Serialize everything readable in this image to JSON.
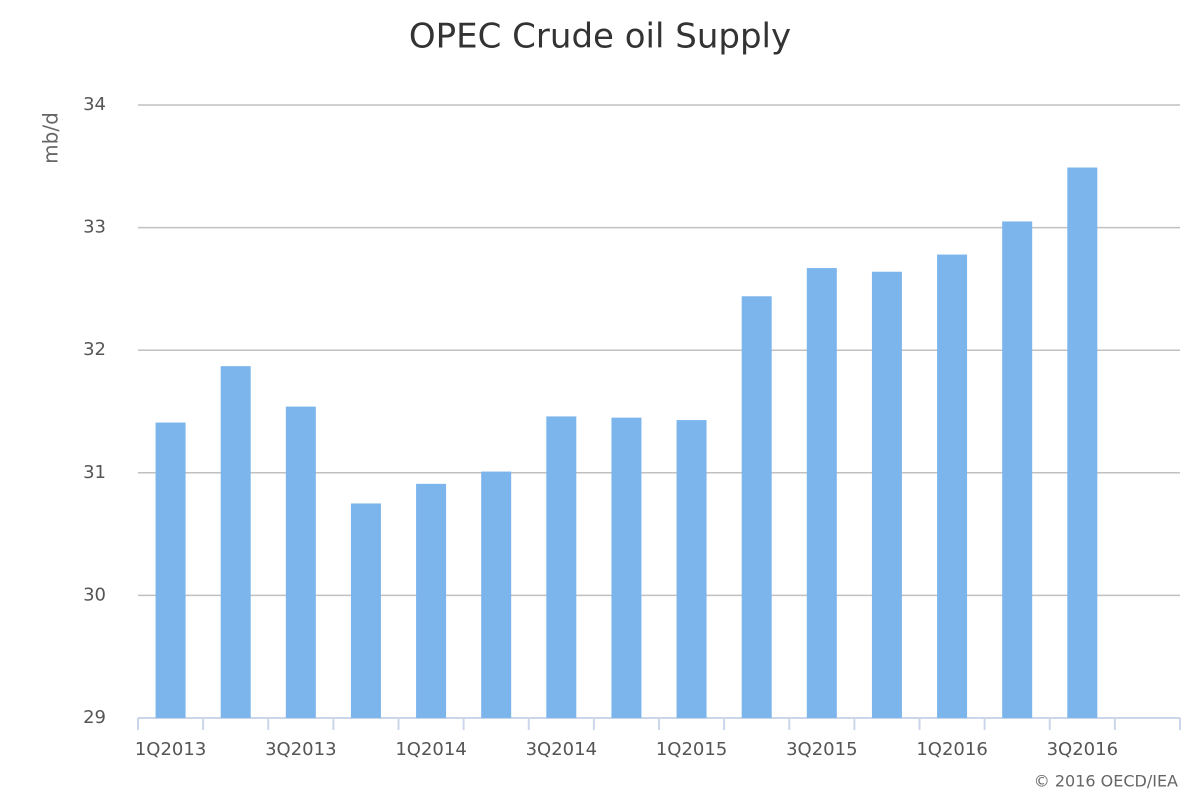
{
  "chart_data": {
    "type": "bar",
    "title": "OPEC Crude oil Supply",
    "y_label": "mb/d",
    "credit": "© 2016 OECD/IEA",
    "categories": [
      "1Q2013",
      null,
      "3Q2013",
      null,
      "1Q2014",
      null,
      "3Q2014",
      null,
      "1Q2015",
      null,
      "3Q2015",
      null,
      "1Q2016",
      null,
      "3Q2016",
      null
    ],
    "values": [
      31.41,
      31.87,
      31.54,
      30.75,
      30.91,
      31.01,
      31.46,
      31.45,
      31.43,
      32.44,
      32.67,
      32.64,
      32.78,
      33.05,
      33.49,
      null
    ],
    "color": "#7cb5ec",
    "ylim": [
      29,
      34
    ],
    "yticks": [
      29,
      30,
      31,
      32,
      33,
      34
    ],
    "grid": true
  }
}
